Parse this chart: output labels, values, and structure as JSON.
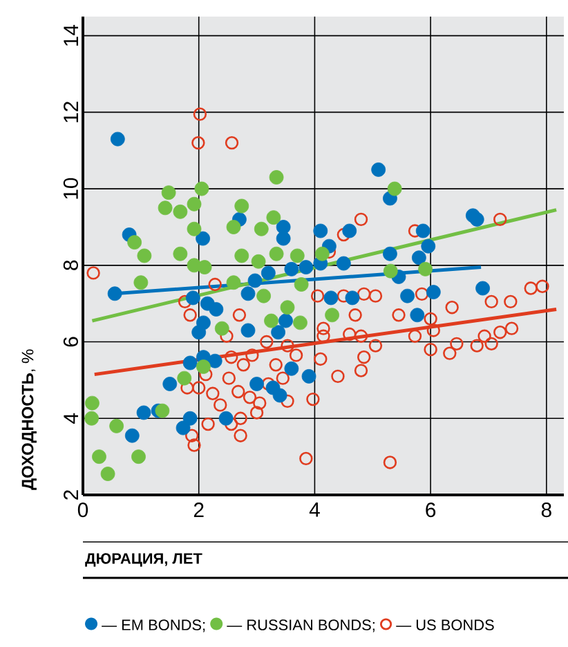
{
  "chart_data": {
    "type": "scatter",
    "xlabel": "ДЮРАЦИЯ, ЛЕТ",
    "ylabel": "**ДОХОДНОСТЬ**, %",
    "xlim": [
      0,
      8.3
    ],
    "ylim": [
      2,
      14.5
    ],
    "xticks": [
      0,
      2,
      4,
      6,
      8
    ],
    "yticks": [
      2,
      4,
      6,
      8,
      10,
      12,
      14
    ],
    "grid": true,
    "legend": "bottom",
    "marker": "circle",
    "series": [
      {
        "name": "— EM BONDS;",
        "color": "#0072bc",
        "x": [
          0.6,
          0.8,
          2.07,
          2.7,
          3.46,
          3.46,
          4.1,
          4.25,
          4.6,
          4.5,
          5.1,
          5.3,
          5.3,
          5.87,
          5.96,
          5.8,
          6.73,
          6.8,
          0.55,
          1.9,
          2.15,
          2.3,
          2.08,
          2.0,
          2.85,
          2.85,
          2.97,
          3.2,
          3.37,
          3.5,
          3.6,
          3.85,
          4.1,
          4.28,
          4.65,
          5.45,
          5.6,
          5.77,
          6.05,
          6.9,
          1.85,
          2.08,
          2.28,
          1.5,
          1.05,
          1.3,
          0.85,
          1.73,
          1.85,
          2.47,
          3.0,
          3.28,
          3.4,
          3.6,
          3.9
        ],
        "values": [
          11.3,
          8.8,
          8.7,
          9.2,
          9.0,
          8.7,
          8.9,
          8.5,
          8.9,
          8.05,
          10.5,
          9.75,
          8.3,
          8.9,
          8.5,
          8.2,
          9.3,
          9.2,
          7.26,
          7.15,
          7.0,
          6.85,
          6.5,
          6.25,
          6.3,
          7.26,
          7.6,
          7.8,
          6.25,
          6.55,
          7.9,
          7.95,
          8.05,
          7.15,
          7.15,
          7.7,
          7.2,
          6.7,
          7.3,
          7.4,
          5.45,
          5.6,
          5.5,
          4.9,
          4.15,
          4.2,
          3.55,
          3.75,
          4.0,
          4.0,
          4.9,
          4.8,
          4.6,
          5.3,
          5.1
        ]
      },
      {
        "name": "— RUSSIAN BONDS;",
        "color": "#72bf44",
        "x": [
          1.48,
          1.42,
          1.68,
          1.92,
          2.05,
          1.92,
          0.89,
          1.06,
          1.68,
          2.74,
          2.6,
          3.08,
          3.29,
          3.34,
          2.74,
          3.03,
          3.34,
          3.7,
          4.13,
          5.38,
          5.31,
          5.91,
          1.92,
          2.1,
          1.0,
          2.6,
          3.12,
          3.77,
          3.53,
          3.25,
          3.75,
          4.3,
          2.4,
          2.08,
          1.75,
          1.37,
          0.16,
          0.15,
          0.58,
          0.28,
          0.96,
          0.43
        ],
        "values": [
          9.9,
          9.5,
          9.4,
          9.6,
          10.0,
          8.95,
          8.6,
          8.25,
          8.3,
          9.55,
          9.0,
          8.95,
          9.25,
          10.3,
          8.25,
          8.1,
          8.3,
          8.25,
          8.3,
          10.0,
          7.85,
          7.9,
          8.0,
          7.95,
          7.55,
          7.55,
          7.2,
          7.5,
          6.9,
          6.55,
          6.5,
          6.7,
          6.35,
          5.35,
          5.05,
          4.2,
          4.4,
          4.0,
          3.8,
          3.0,
          3.0,
          2.55
        ]
      },
      {
        "name": "— US BONDS",
        "color": "#e03c1f",
        "marker": "open circle",
        "x": [
          2.02,
          1.99,
          2.57,
          4.8,
          4.5,
          5.73,
          7.2,
          4.25,
          0.18,
          1.76,
          1.85,
          2.28,
          2.7,
          2.48,
          4.05,
          4.5,
          4.85,
          5.05,
          4.7,
          5.45,
          5.85,
          6.37,
          7.05,
          7.38,
          7.73,
          7.93,
          7.4,
          7.2,
          6.93,
          7.05,
          6.8,
          6.45,
          6.33,
          6.0,
          5.73,
          6.05,
          4.8,
          4.6,
          5.05,
          4.85,
          4.8,
          4.4,
          4.15,
          4.1,
          3.97,
          3.85,
          5.3,
          3.53,
          3.68,
          3.33,
          3.45,
          3.17,
          2.92,
          2.77,
          2.56,
          2.52,
          2.68,
          2.88,
          3.05,
          3.0,
          2.72,
          2.37,
          2.16,
          2.56,
          2.72,
          1.88,
          1.92,
          2.0,
          2.12,
          1.8,
          3.53,
          2.24,
          4.15,
          3.2,
          6.0
        ],
        "values": [
          11.95,
          11.2,
          11.2,
          9.2,
          8.8,
          8.9,
          9.2,
          8.35,
          7.8,
          7.05,
          6.7,
          7.5,
          6.7,
          6.15,
          7.2,
          7.2,
          7.25,
          7.2,
          6.7,
          6.7,
          7.25,
          6.9,
          7.05,
          7.05,
          7.4,
          7.45,
          6.35,
          6.25,
          6.15,
          5.95,
          5.9,
          5.95,
          5.7,
          5.8,
          6.15,
          6.3,
          6.15,
          6.2,
          5.9,
          5.6,
          5.25,
          5.1,
          6.15,
          5.55,
          4.5,
          2.95,
          2.85,
          5.9,
          5.65,
          5.4,
          5.05,
          6.0,
          5.65,
          5.4,
          5.6,
          5.05,
          4.7,
          4.55,
          4.4,
          4.15,
          4.0,
          4.35,
          3.85,
          3.85,
          3.55,
          3.55,
          3.3,
          4.8,
          5.15,
          4.8,
          4.45,
          4.65,
          6.35,
          4.9,
          6.6
        ]
      },
      {
        "type": "line",
        "marker": "none",
        "color": "#0072bc",
        "x": [
          0.55,
          6.87
        ],
        "values": [
          7.26,
          7.95
        ]
      },
      {
        "type": "line",
        "marker": "none",
        "color": "#72bf44",
        "x": [
          0.16,
          8.17
        ],
        "values": [
          6.55,
          9.45
        ]
      },
      {
        "type": "line",
        "marker": "none",
        "color": "#e03c1f",
        "x": [
          0.2,
          8.17
        ],
        "values": [
          5.15,
          6.85
        ]
      }
    ]
  }
}
